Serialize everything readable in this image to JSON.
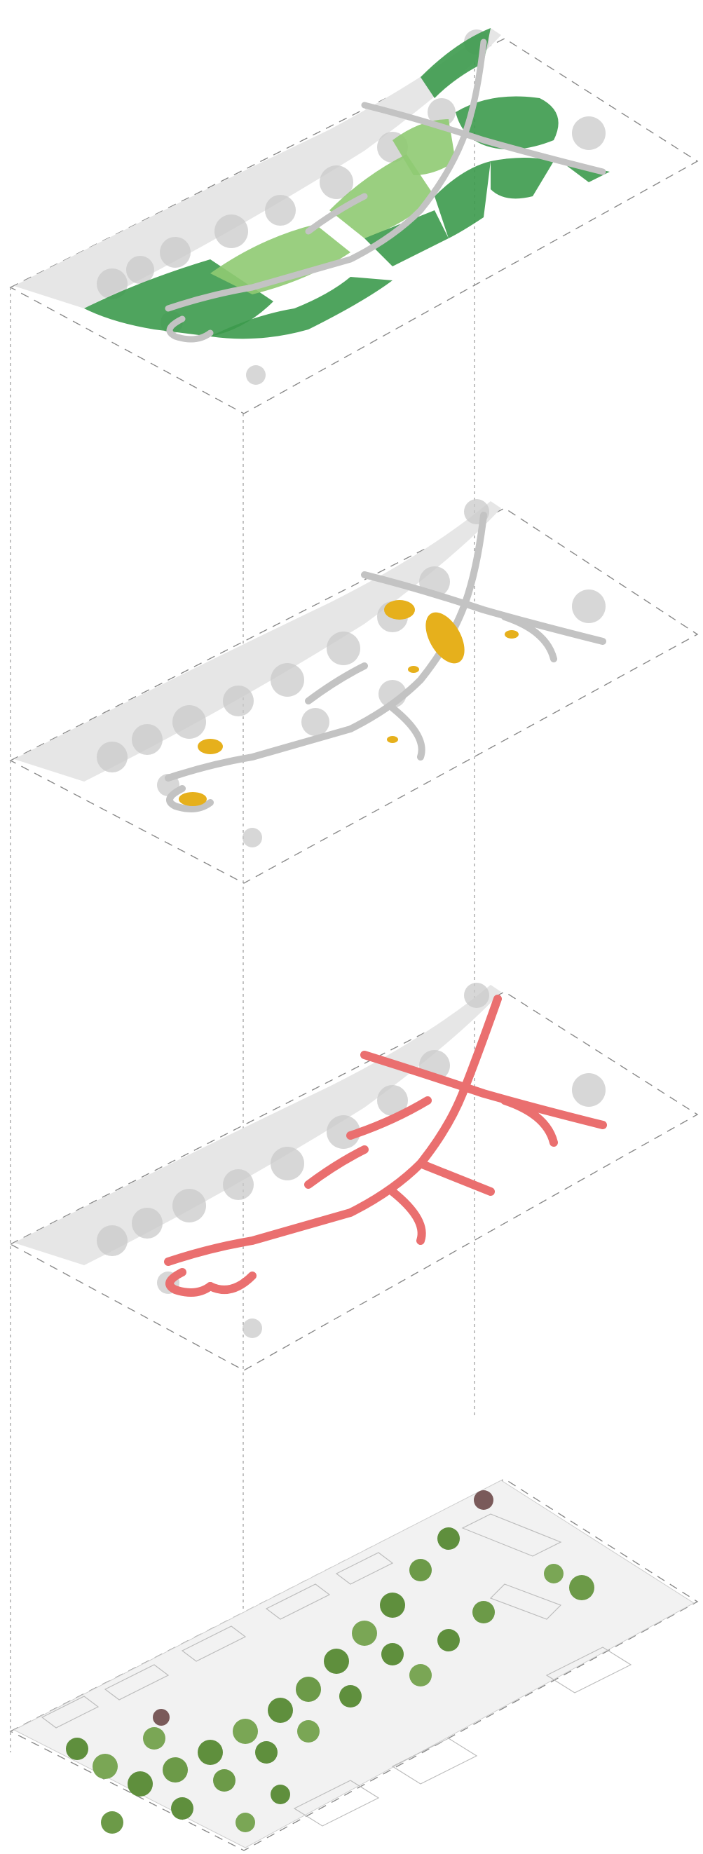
{
  "diagram": {
    "type": "exploded-axonometric",
    "layers": [
      {
        "id": "green-spaces",
        "color": "#3c9a4c",
        "secondary_color": "#8fca72"
      },
      {
        "id": "plazas",
        "color": "#e6b01c"
      },
      {
        "id": "paths",
        "color": "#ea6f6f"
      },
      {
        "id": "site-plan",
        "color": "#5f8f3d"
      }
    ],
    "colors": {
      "path_grey": "#c3c3c3",
      "ground": "#e6e6e6",
      "tree_grey": "#c9c9c9",
      "frame": "#8a8a8a"
    }
  }
}
